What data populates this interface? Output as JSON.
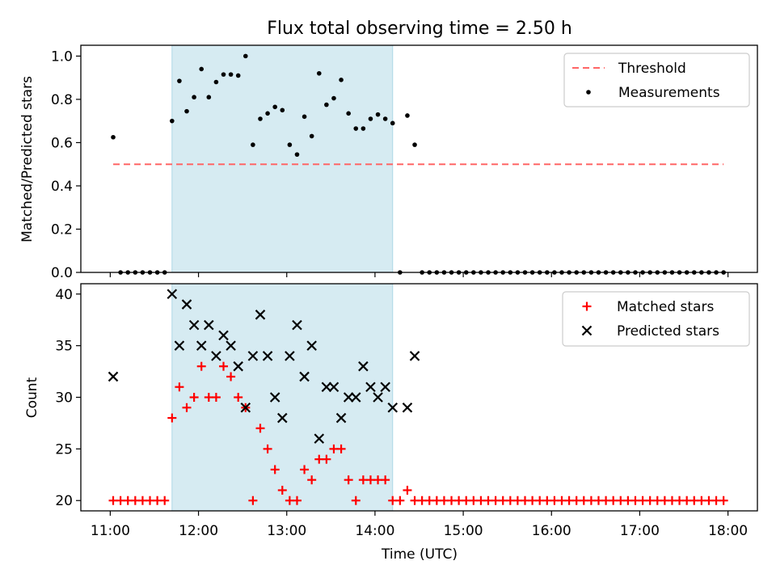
{
  "title": "Flux total observing time = 2.50 h",
  "colors": {
    "shade": "#add8e6",
    "threshold": "#ff6666",
    "measurement": "#000000",
    "matched": "#ff0000",
    "predicted": "#000000"
  },
  "chart_data": [
    {
      "type": "scatter",
      "ylabel": "Matched/Predicted stars",
      "ylim": [
        0,
        1.05
      ],
      "yticks": [
        {
          "value": 0.0,
          "label": "0.0"
        },
        {
          "value": 0.2,
          "label": "0.2"
        },
        {
          "value": 0.4,
          "label": "0.4"
        },
        {
          "value": 0.6,
          "label": "0.6"
        },
        {
          "value": 0.8,
          "label": "0.8"
        },
        {
          "value": 1.0,
          "label": "1.0"
        }
      ],
      "xlim": [
        "10:40",
        "18:20"
      ],
      "shaded_span": [
        "11:42",
        "14:12"
      ],
      "legend": {
        "position": "top-right",
        "threshold_label": "Threshold",
        "measurements_label": "Measurements"
      },
      "threshold": {
        "x": [
          "11:02",
          "17:57"
        ],
        "value": 0.5
      },
      "measurements": {
        "x": [
          "11:02",
          "11:07",
          "11:12",
          "11:17",
          "11:22",
          "11:27",
          "11:32",
          "11:37",
          "11:42",
          "11:47",
          "11:52",
          "11:57",
          "12:02",
          "12:07",
          "12:12",
          "12:17",
          "12:22",
          "12:27",
          "12:32",
          "12:37",
          "12:42",
          "12:47",
          "12:52",
          "12:57",
          "13:02",
          "13:07",
          "13:12",
          "13:17",
          "13:22",
          "13:27",
          "13:32",
          "13:37",
          "13:42",
          "13:47",
          "13:52",
          "13:57",
          "14:02",
          "14:07",
          "14:12",
          "14:17",
          "14:22",
          "14:27",
          "14:32",
          "14:37",
          "14:42",
          "14:47",
          "14:52",
          "14:57",
          "15:02",
          "15:07",
          "15:12",
          "15:17",
          "15:22",
          "15:27",
          "15:32",
          "15:37",
          "15:42",
          "15:47",
          "15:52",
          "15:57",
          "16:02",
          "16:07",
          "16:12",
          "16:17",
          "16:22",
          "16:27",
          "16:32",
          "16:37",
          "16:42",
          "16:47",
          "16:52",
          "16:57",
          "17:02",
          "17:07",
          "17:12",
          "17:17",
          "17:22",
          "17:27",
          "17:32",
          "17:37",
          "17:42",
          "17:47",
          "17:52",
          "17:57"
        ],
        "y": [
          0.625,
          0.0,
          0.0,
          0.0,
          0.0,
          0.0,
          0.0,
          0.0,
          0.7,
          0.885,
          0.745,
          0.81,
          0.94,
          0.81,
          0.88,
          0.915,
          0.915,
          0.91,
          1.0,
          0.59,
          0.71,
          0.735,
          0.765,
          0.75,
          0.59,
          0.545,
          0.72,
          0.63,
          0.92,
          0.775,
          0.805,
          0.89,
          0.735,
          0.665,
          0.665,
          0.71,
          0.73,
          0.71,
          0.69,
          0.0,
          0.725,
          0.59,
          0.0,
          0.0,
          0.0,
          0.0,
          0.0,
          0.0,
          0.0,
          0.0,
          0.0,
          0.0,
          0.0,
          0.0,
          0.0,
          0.0,
          0.0,
          0.0,
          0.0,
          0.0,
          0.0,
          0.0,
          0.0,
          0.0,
          0.0,
          0.0,
          0.0,
          0.0,
          0.0,
          0.0,
          0.0,
          0.0,
          0.0,
          0.0,
          0.0,
          0.0,
          0.0,
          0.0,
          0.0,
          0.0,
          0.0,
          0.0,
          0.0,
          0.0
        ]
      }
    },
    {
      "type": "scatter",
      "ylabel": "Count",
      "xlabel": "Time (UTC)",
      "ylim": [
        19,
        41
      ],
      "yticks": [
        {
          "value": 20,
          "label": "20"
        },
        {
          "value": 25,
          "label": "25"
        },
        {
          "value": 30,
          "label": "30"
        },
        {
          "value": 35,
          "label": "35"
        },
        {
          "value": 40,
          "label": "40"
        }
      ],
      "xticks": [
        "11:00",
        "12:00",
        "13:00",
        "14:00",
        "15:00",
        "16:00",
        "17:00",
        "18:00"
      ],
      "xlim": [
        "10:40",
        "18:20"
      ],
      "shaded_span": [
        "11:42",
        "14:12"
      ],
      "legend": {
        "position": "top-right",
        "matched_label": "Matched stars",
        "predicted_label": "Predicted stars"
      },
      "matched": {
        "x": [
          "11:02",
          "11:07",
          "11:12",
          "11:17",
          "11:22",
          "11:27",
          "11:32",
          "11:37",
          "11:42",
          "11:47",
          "11:52",
          "11:57",
          "12:02",
          "12:07",
          "12:12",
          "12:17",
          "12:22",
          "12:27",
          "12:32",
          "12:37",
          "12:42",
          "12:47",
          "12:52",
          "12:57",
          "13:02",
          "13:07",
          "13:12",
          "13:17",
          "13:22",
          "13:27",
          "13:32",
          "13:37",
          "13:42",
          "13:47",
          "13:52",
          "13:57",
          "14:02",
          "14:07",
          "14:12",
          "14:17",
          "14:22",
          "14:27",
          "14:32",
          "14:37",
          "14:42",
          "14:47",
          "14:52",
          "14:57",
          "15:02",
          "15:07",
          "15:12",
          "15:17",
          "15:22",
          "15:27",
          "15:32",
          "15:37",
          "15:42",
          "15:47",
          "15:52",
          "15:57",
          "16:02",
          "16:07",
          "16:12",
          "16:17",
          "16:22",
          "16:27",
          "16:32",
          "16:37",
          "16:42",
          "16:47",
          "16:52",
          "16:57",
          "17:02",
          "17:07",
          "17:12",
          "17:17",
          "17:22",
          "17:27",
          "17:32",
          "17:37",
          "17:42",
          "17:47",
          "17:52",
          "17:57"
        ],
        "y": [
          20,
          20,
          20,
          20,
          20,
          20,
          20,
          20,
          28,
          31,
          29,
          30,
          33,
          30,
          30,
          33,
          32,
          30,
          29,
          20,
          27,
          25,
          23,
          21,
          20,
          20,
          23,
          22,
          24,
          24,
          25,
          25,
          22,
          20,
          22,
          22,
          22,
          22,
          20,
          20,
          21,
          20,
          20,
          20,
          20,
          20,
          20,
          20,
          20,
          20,
          20,
          20,
          20,
          20,
          20,
          20,
          20,
          20,
          20,
          20,
          20,
          20,
          20,
          20,
          20,
          20,
          20,
          20,
          20,
          20,
          20,
          20,
          20,
          20,
          20,
          20,
          20,
          20,
          20,
          20,
          20,
          20,
          20,
          20
        ]
      },
      "predicted": {
        "x": [
          "11:02",
          "11:42",
          "11:47",
          "11:52",
          "11:57",
          "12:02",
          "12:07",
          "12:12",
          "12:17",
          "12:22",
          "12:27",
          "12:32",
          "12:37",
          "12:42",
          "12:47",
          "12:52",
          "12:57",
          "13:02",
          "13:07",
          "13:12",
          "13:17",
          "13:22",
          "13:27",
          "13:32",
          "13:37",
          "13:42",
          "13:47",
          "13:52",
          "13:57",
          "14:02",
          "14:07",
          "14:12",
          "14:22",
          "14:27"
        ],
        "y": [
          32,
          40,
          35,
          39,
          37,
          35,
          37,
          34,
          36,
          35,
          33,
          29,
          34,
          38,
          34,
          30,
          28,
          34,
          37,
          32,
          35,
          26,
          31,
          31,
          28,
          30,
          30,
          33,
          31,
          30,
          31,
          29,
          29,
          34
        ]
      }
    }
  ]
}
